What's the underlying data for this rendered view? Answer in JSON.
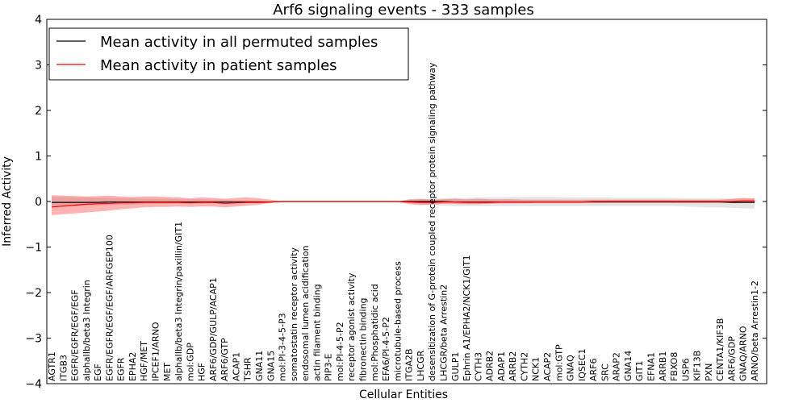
{
  "chart_data": {
    "type": "line",
    "title": "Arf6 signaling events - 333 samples",
    "xlabel": "Cellular Entities",
    "ylabel": "Inferred Activity",
    "ylim": [
      -4,
      4
    ],
    "yticks": [
      -4,
      -3,
      -2,
      -1,
      0,
      1,
      2,
      3,
      4
    ],
    "ytick_labels": [
      "−4",
      "−3",
      "−2",
      "−1",
      "0",
      "1",
      "2",
      "3",
      "4"
    ],
    "legend_position": "top-left",
    "categories": [
      "AGTR1",
      "ITGB3",
      "EGFR/EGFR/EGF/EGF",
      "alphaIIb/beta3 Integrin",
      "EGF",
      "EGFR/EGFR/EGF/EGF/ARFGEP100",
      "EGFR",
      "EPHA2",
      "HGF/MET",
      "IPCEF1/ARNO",
      "MET",
      "alphaIIb/beta3 Integrin/paxillin/GIT1",
      "mol:GDP",
      "HGF",
      "ARF6/GDP/GULP/ACAP1",
      "ARF6/GTP",
      "ACAP1",
      "TSHR",
      "GNA11",
      "GNA15",
      "mol:PI-3-4-5-P3",
      "somatostatin receptor activity",
      "endosomal lumen acidification",
      "actin filament binding",
      "PIP3-E",
      "mol:PI-4-5-P2",
      "receptor agonist activity",
      "fibronectin binding",
      "mol:Phosphatidic acid",
      "EFA6/PI-4-5-P2",
      "microtubule-based process",
      "ITGA2B",
      "LHCGR",
      "desensitization of G-protein coupled receptor protein signaling pathway",
      "LHCGR/beta Arrestin2",
      "GULP1",
      "Ephrin A1/EPHA2/NCK1/GIT1",
      "CYTH3",
      "ADRB2",
      "ADAP1",
      "ARRB2",
      "CYTH2",
      "NCK1",
      "ACAP2",
      "mol:GTP",
      "GNAQ",
      "IQSEC1",
      "ARF6",
      "SRC",
      "ARAP2",
      "GNA14",
      "GIT1",
      "EFNA1",
      "ARRB1",
      "FBXO8",
      "USP6",
      "KIF13B",
      "PXN",
      "CENTA1/KIF3B",
      "ARF6/GDP",
      "GNAQ/ARNO",
      "ARNO/beta Arrestin1-2"
    ],
    "series": [
      {
        "name": "Mean activity in all permuted samples",
        "color": "#000000",
        "values": [
          -0.02,
          -0.02,
          -0.02,
          -0.02,
          -0.02,
          -0.01,
          -0.01,
          -0.01,
          -0.01,
          -0.01,
          -0.01,
          -0.01,
          -0.01,
          -0.01,
          -0.01,
          -0.01,
          -0.01,
          -0.01,
          -0.01,
          -0.01,
          0,
          0,
          0,
          0,
          0,
          0,
          0,
          0,
          0,
          0,
          0,
          0,
          0,
          0,
          0,
          -0.01,
          -0.01,
          -0.01,
          -0.01,
          -0.01,
          -0.01,
          -0.01,
          -0.01,
          -0.01,
          -0.01,
          -0.01,
          -0.01,
          -0.01,
          -0.01,
          -0.01,
          -0.01,
          -0.01,
          -0.01,
          -0.01,
          -0.01,
          -0.01,
          -0.01,
          -0.01,
          -0.01,
          -0.02,
          -0.02,
          -0.02
        ],
        "band_low": [
          -0.12,
          -0.11,
          -0.1,
          -0.1,
          -0.09,
          -0.08,
          -0.07,
          -0.07,
          -0.06,
          -0.06,
          -0.06,
          -0.05,
          -0.05,
          -0.05,
          -0.04,
          -0.04,
          -0.03,
          -0.03,
          -0.02,
          -0.01,
          0,
          0,
          0,
          0,
          0,
          0,
          0,
          0,
          0,
          0,
          0,
          -0.03,
          -0.06,
          -0.07,
          -0.09,
          -0.1,
          -0.1,
          -0.1,
          -0.1,
          -0.1,
          -0.1,
          -0.1,
          -0.1,
          -0.1,
          -0.1,
          -0.1,
          -0.1,
          -0.1,
          -0.1,
          -0.1,
          -0.1,
          -0.1,
          -0.1,
          -0.1,
          -0.1,
          -0.11,
          -0.12,
          -0.13,
          -0.13,
          -0.14,
          -0.15,
          -0.16
        ],
        "band_high": [
          0.1,
          0.1,
          0.09,
          0.09,
          0.08,
          0.08,
          0.07,
          0.07,
          0.06,
          0.06,
          0.06,
          0.05,
          0.05,
          0.05,
          0.04,
          0.04,
          0.03,
          0.03,
          0.02,
          0.01,
          0,
          0,
          0,
          0,
          0,
          0,
          0,
          0,
          0,
          0,
          0,
          0.03,
          0.05,
          0.06,
          0.07,
          0.08,
          0.08,
          0.09,
          0.09,
          0.09,
          0.1,
          0.1,
          0.1,
          0.1,
          0.1,
          0.09,
          0.09,
          0.09,
          0.09,
          0.08,
          0.08,
          0.08,
          0.08,
          0.08,
          0.08,
          0.07,
          0.07,
          0.07,
          0.07,
          0.06,
          0.06,
          0.06
        ]
      },
      {
        "name": "Mean activity in patient samples",
        "color": "#ff0000",
        "values": [
          -0.12,
          -0.1,
          -0.08,
          -0.06,
          -0.05,
          -0.04,
          -0.03,
          -0.03,
          -0.02,
          -0.02,
          -0.02,
          -0.02,
          -0.03,
          -0.02,
          -0.02,
          -0.04,
          -0.03,
          -0.02,
          -0.02,
          -0.01,
          0,
          0,
          0,
          0,
          0,
          0,
          0,
          0,
          0,
          0,
          0,
          -0.01,
          -0.02,
          -0.02,
          -0.01,
          -0.01,
          -0.02,
          -0.02,
          -0.02,
          -0.01,
          -0.01,
          -0.01,
          -0.01,
          -0.01,
          -0.01,
          -0.01,
          -0.01,
          0,
          0,
          0,
          0,
          0,
          0,
          0,
          0,
          0,
          0,
          0,
          0,
          0,
          0.01,
          0.01
        ],
        "band_low": [
          -0.3,
          -0.28,
          -0.26,
          -0.24,
          -0.22,
          -0.2,
          -0.17,
          -0.15,
          -0.13,
          -0.12,
          -0.12,
          -0.11,
          -0.12,
          -0.11,
          -0.11,
          -0.13,
          -0.11,
          -0.09,
          -0.07,
          -0.03,
          0,
          0,
          0,
          0,
          0,
          0,
          0,
          0,
          0,
          0,
          0,
          -0.06,
          -0.08,
          -0.07,
          -0.05,
          -0.05,
          -0.06,
          -0.06,
          -0.05,
          -0.04,
          -0.04,
          -0.04,
          -0.03,
          -0.03,
          -0.03,
          -0.03,
          -0.03,
          -0.02,
          -0.02,
          -0.02,
          -0.02,
          -0.02,
          -0.02,
          -0.02,
          -0.02,
          -0.02,
          -0.02,
          -0.02,
          -0.02,
          -0.02,
          -0.02,
          -0.02
        ],
        "band_high": [
          0.14,
          0.13,
          0.12,
          0.11,
          0.12,
          0.13,
          0.11,
          0.1,
          0.11,
          0.11,
          0.1,
          0.09,
          0.07,
          0.09,
          0.08,
          0.06,
          0.08,
          0.09,
          0.07,
          0.04,
          0,
          0,
          0,
          0,
          0,
          0,
          0,
          0,
          0,
          0,
          0,
          0.05,
          0.06,
          0.04,
          0.05,
          0.06,
          0.05,
          0.06,
          0.05,
          0.05,
          0.05,
          0.04,
          0.04,
          0.04,
          0.04,
          0.04,
          0.04,
          0.04,
          0.04,
          0.04,
          0.04,
          0.04,
          0.04,
          0.04,
          0.04,
          0.04,
          0.04,
          0.04,
          0.04,
          0.06,
          0.08,
          0.07
        ]
      }
    ]
  }
}
